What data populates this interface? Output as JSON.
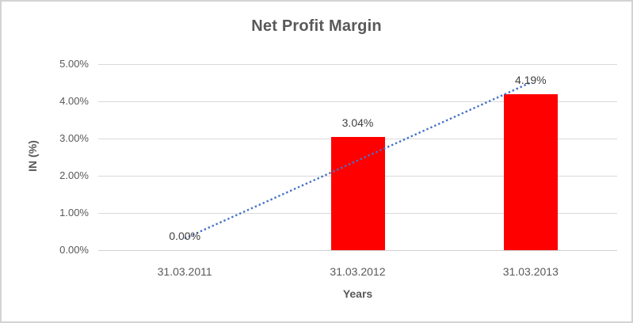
{
  "chart_data": {
    "type": "bar",
    "title": "Net Profit Margin",
    "categories": [
      "31.03.2011",
      "31.03.2012",
      "31.03.2013"
    ],
    "values": [
      0.0,
      3.04,
      4.19
    ],
    "data_labels": [
      "0.00%",
      "3.04%",
      "4.19%"
    ],
    "xlabel": "Years",
    "ylabel": "IN (%)",
    "ylim": [
      0,
      5
    ],
    "yticks": [
      0,
      1,
      2,
      3,
      4,
      5
    ],
    "ytick_labels": [
      "0.00%",
      "1.00%",
      "2.00%",
      "3.00%",
      "4.00%",
      "5.00%"
    ],
    "grid": true,
    "legend": "none",
    "trendline": {
      "type": "linear",
      "style": "dotted",
      "start_value_pct": 0.315,
      "end_value_pct": 4.505
    },
    "colors": {
      "bar": "#FF0000",
      "trendline": "#4472C4",
      "text": "#595959",
      "data_label_text": "#404040",
      "gridline": "#D9D9D9",
      "axis_line": "#D0D0D0",
      "border": "#D3D3D3",
      "background": "#FFFFFF"
    }
  }
}
